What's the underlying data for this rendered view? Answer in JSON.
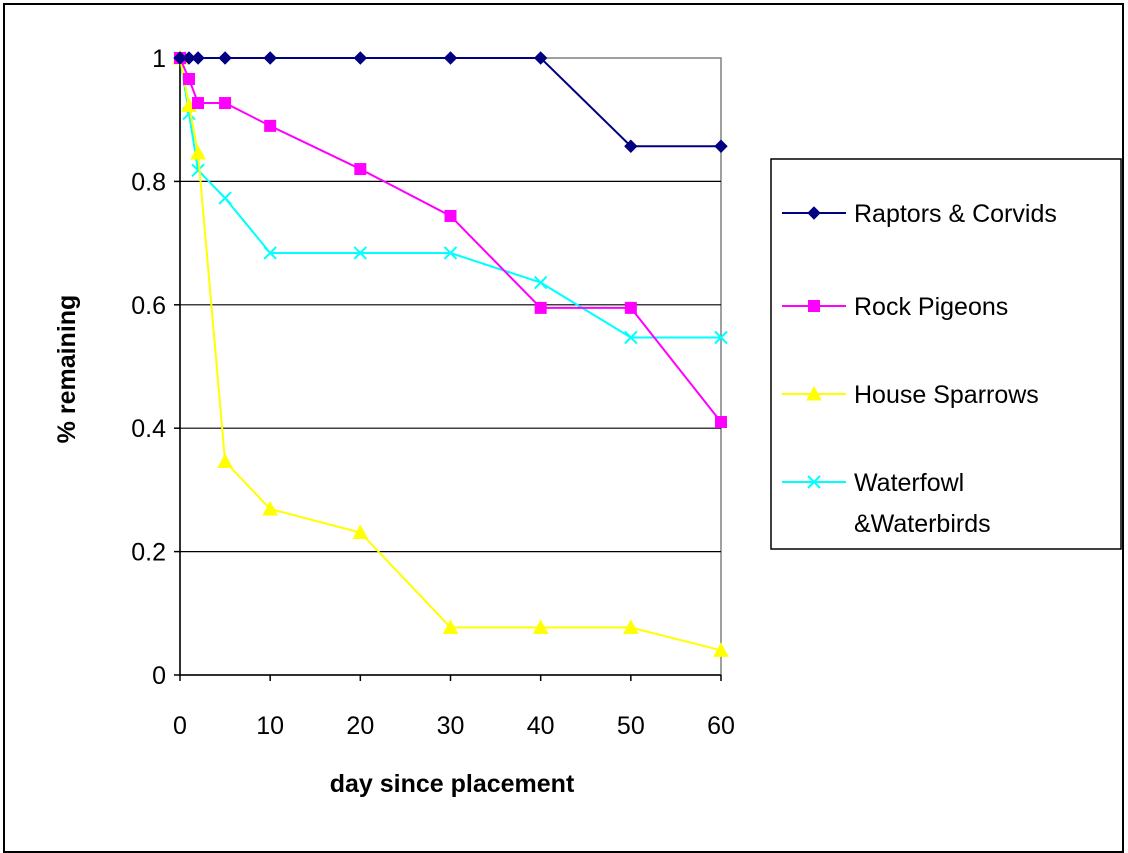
{
  "chart_data": {
    "type": "line",
    "xlabel": "day since placement",
    "ylabel": "% remaining",
    "x_ticks": [
      "0",
      "10",
      "20",
      "30",
      "40",
      "50",
      "60"
    ],
    "y_ticks": [
      "0",
      "0.2",
      "0.4",
      "0.6",
      "0.8",
      "1"
    ],
    "xlim": [
      0,
      60
    ],
    "ylim": [
      0,
      1
    ],
    "grid": "horizontal",
    "legend_position": "right",
    "series": [
      {
        "name": "Raptors & Corvids",
        "color": "#000080",
        "marker": "diamond",
        "x": [
          0,
          1,
          2,
          5,
          10,
          20,
          30,
          40,
          50,
          60
        ],
        "values": [
          1,
          1,
          1,
          1,
          1,
          1,
          1,
          1,
          0.857,
          0.857
        ]
      },
      {
        "name": "Rock Pigeons",
        "color": "#FF00FF",
        "marker": "square",
        "x": [
          0,
          1,
          2,
          5,
          10,
          20,
          30,
          40,
          50,
          60
        ],
        "values": [
          1,
          0.966,
          0.927,
          0.927,
          0.89,
          0.82,
          0.744,
          0.595,
          0.595,
          0.41
        ]
      },
      {
        "name": "House Sparrows",
        "color": "#FFFF00",
        "marker": "triangle",
        "x": [
          0,
          1,
          2,
          5,
          10,
          20,
          30,
          40,
          50,
          60
        ],
        "values": [
          1,
          0.923,
          0.846,
          0.346,
          0.269,
          0.231,
          0.077,
          0.077,
          0.077,
          0.04
        ]
      },
      {
        "name": "Waterfowl &Waterbirds",
        "legend_lines": [
          "Waterfowl",
          "&Waterbirds"
        ],
        "color": "#00FFFF",
        "marker": "x",
        "x": [
          0,
          1,
          2,
          5,
          10,
          20,
          30,
          40,
          50,
          60
        ],
        "values": [
          1,
          0.91,
          0.818,
          0.773,
          0.684,
          0.684,
          0.684,
          0.636,
          0.547,
          0.547
        ]
      }
    ]
  }
}
